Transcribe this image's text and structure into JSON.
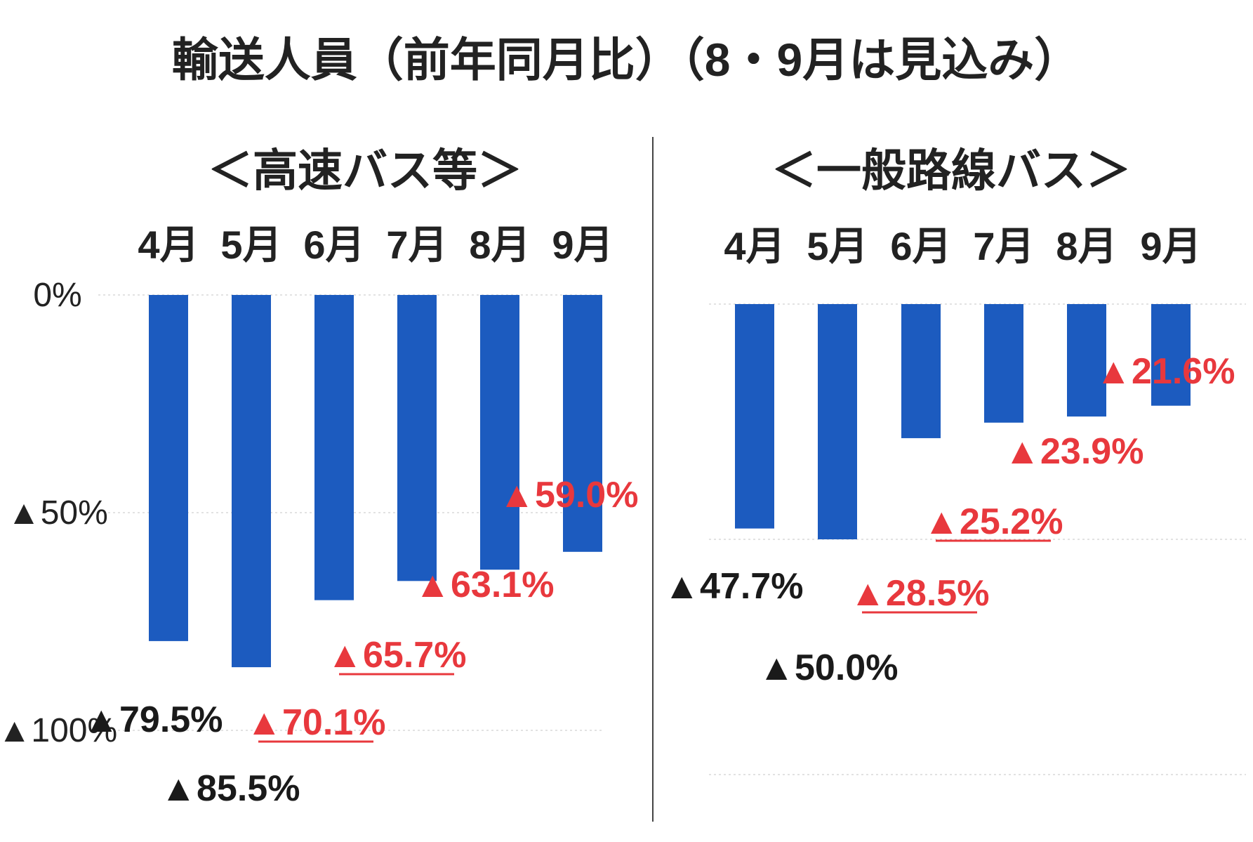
{
  "title": "輸送人員（前年同月比）（8・9月は見込み）",
  "colors": {
    "bar": "#1c5bbf",
    "actual_label": "#1a1a1a",
    "forecast_label": "#e8383d",
    "axis_line": "#999999",
    "divider": "#444444"
  },
  "chart_data": [
    {
      "type": "bar",
      "title": "＜高速バス等＞",
      "categories": [
        "4月",
        "5月",
        "6月",
        "7月",
        "8月",
        "9月"
      ],
      "values": [
        -79.5,
        -85.5,
        -70.1,
        -65.7,
        -63.1,
        -59.0
      ],
      "value_labels": [
        "▲79.5%",
        "▲85.5%",
        "▲70.1%",
        "▲65.7%",
        "▲63.1%",
        "▲59.0%"
      ],
      "label_style": [
        "black",
        "black",
        "red-underline",
        "red-underline",
        "red",
        "red"
      ],
      "ytick_values": [
        0,
        -50,
        -100
      ],
      "ytick_labels": [
        "0%",
        "▲50%",
        "▲100%"
      ],
      "ylim": [
        -100,
        0
      ],
      "xlabel": "",
      "ylabel": ""
    },
    {
      "type": "bar",
      "title": "＜一般路線バス＞",
      "categories": [
        "4月",
        "5月",
        "6月",
        "7月",
        "8月",
        "9月"
      ],
      "values": [
        -47.7,
        -50.0,
        -28.5,
        -25.2,
        -23.9,
        -21.6
      ],
      "value_labels": [
        "▲47.7%",
        "▲50.0%",
        "▲28.5%",
        "▲25.2%",
        "▲23.9%",
        "▲21.6%"
      ],
      "label_style": [
        "black",
        "black",
        "red-underline",
        "red-underline",
        "red",
        "red"
      ],
      "ytick_values": [
        0,
        -50,
        -100
      ],
      "ytick_labels": [],
      "ylim": [
        -100,
        0
      ],
      "xlabel": "",
      "ylabel": ""
    }
  ]
}
